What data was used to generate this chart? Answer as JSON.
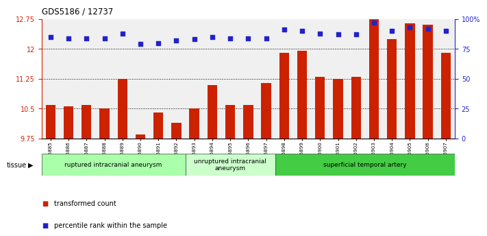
{
  "title": "GDS5186 / 12737",
  "samples": [
    "GSM1306885",
    "GSM1306886",
    "GSM1306887",
    "GSM1306888",
    "GSM1306889",
    "GSM1306890",
    "GSM1306891",
    "GSM1306892",
    "GSM1306893",
    "GSM1306894",
    "GSM1306895",
    "GSM1306896",
    "GSM1306897",
    "GSM1306898",
    "GSM1306899",
    "GSM1306900",
    "GSM1306901",
    "GSM1306902",
    "GSM1306903",
    "GSM1306904",
    "GSM1306905",
    "GSM1306906",
    "GSM1306907"
  ],
  "bar_values": [
    10.6,
    10.55,
    10.6,
    10.5,
    11.25,
    9.85,
    10.4,
    10.15,
    10.5,
    11.1,
    10.6,
    10.6,
    11.15,
    11.9,
    11.95,
    11.3,
    11.25,
    11.3,
    12.75,
    12.25,
    12.65,
    12.6,
    11.9
  ],
  "dot_values": [
    85,
    84,
    84,
    84,
    88,
    79,
    80,
    82,
    83,
    85,
    84,
    84,
    84,
    91,
    90,
    88,
    87,
    87,
    97,
    90,
    93,
    92,
    90
  ],
  "bar_color": "#cc2200",
  "dot_color": "#2222cc",
  "ylim_left": [
    9.75,
    12.75
  ],
  "ylim_right": [
    0,
    100
  ],
  "yticks_left": [
    9.75,
    10.5,
    11.25,
    12.0,
    12.75
  ],
  "ytick_labels_left": [
    "9.75",
    "10.5",
    "11.25",
    "12",
    "12.75"
  ],
  "yticks_right": [
    0,
    25,
    50,
    75,
    100
  ],
  "ytick_labels_right": [
    "0",
    "25",
    "50",
    "75",
    "100%"
  ],
  "hlines": [
    10.5,
    11.25,
    12.0
  ],
  "groups": [
    {
      "label": "ruptured intracranial aneurysm",
      "start": 0,
      "end": 8,
      "color": "#aaffaa"
    },
    {
      "label": "unruptured intracranial\naneurysm",
      "start": 8,
      "end": 13,
      "color": "#ccffcc"
    },
    {
      "label": "superficial temporal artery",
      "start": 13,
      "end": 23,
      "color": "#44cc44"
    }
  ],
  "tissue_label": "tissue",
  "plot_bg": "#f0f0f0",
  "fig_bg": "#ffffff"
}
